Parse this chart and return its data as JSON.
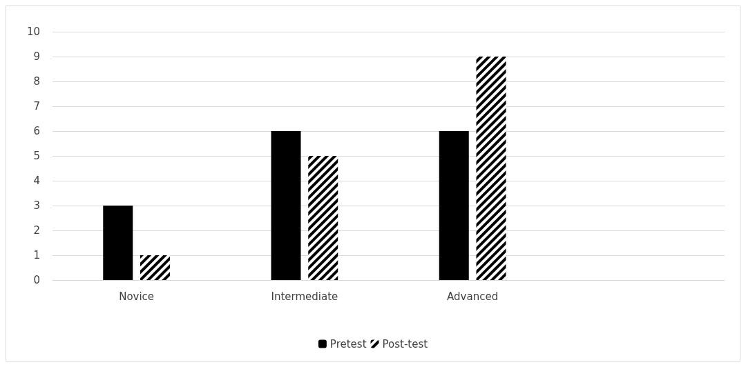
{
  "chart_data": {
    "type": "bar",
    "categories": [
      "Novice",
      "Intermediate",
      "Advanced",
      null
    ],
    "series": [
      {
        "name": "Pretest",
        "color": "#000000",
        "values": [
          3,
          6,
          6,
          null
        ]
      },
      {
        "name": "Post-test",
        "color": "#000000",
        "values": [
          1,
          5,
          9,
          null
        ]
      }
    ],
    "ylim": [
      0,
      10
    ],
    "yticks": [
      0,
      1,
      2,
      3,
      4,
      5,
      6,
      7,
      8,
      9,
      10
    ],
    "grid": "y",
    "legend": "bottom"
  }
}
